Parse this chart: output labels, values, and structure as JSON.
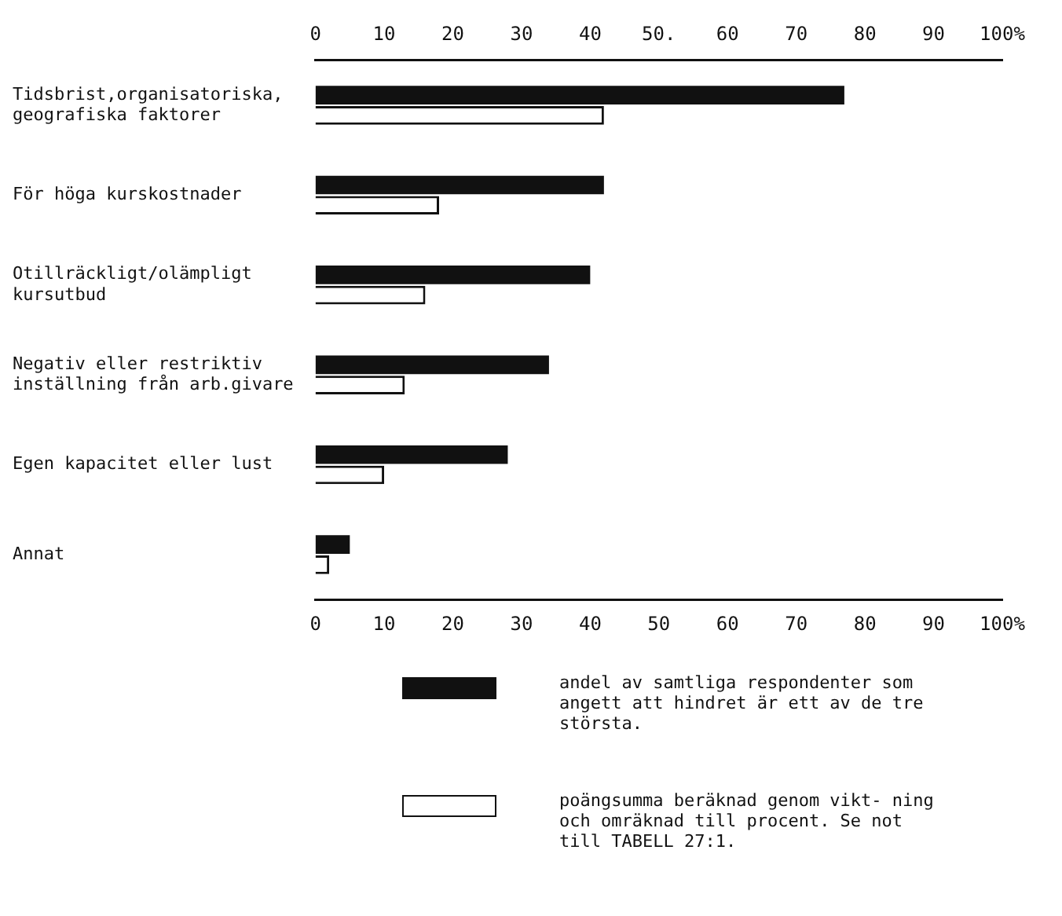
{
  "chart_data": {
    "type": "bar",
    "orientation": "horizontal",
    "categories": [
      "Tidsbrist,organisatoriska, geografiska faktorer",
      "För höga kurskostnader",
      "Otillräckligt/olämpligt kursutbud",
      "Negativ eller restriktiv inställning från arb.givare",
      "Egen kapacitet eller lust",
      "Annat"
    ],
    "series": [
      {
        "name": "andel av samtliga respondenter som angett att hindret är ett av de tre största.",
        "color": "#111111",
        "values": [
          77,
          42,
          40,
          34,
          28,
          5
        ]
      },
      {
        "name": "poängsumma beräknad genom vikt- ning och omräknad till procent. Se not till TABELL 27:1.",
        "color": "#ffffff",
        "values": [
          42,
          18,
          16,
          13,
          10,
          2
        ]
      }
    ],
    "xlim": [
      0,
      100
    ],
    "xticks": [
      0,
      10,
      20,
      30,
      40,
      50,
      60,
      70,
      80,
      90,
      {
        "value": 100,
        "label": "100%"
      }
    ],
    "x2lim": [
      0,
      100
    ],
    "x2ticks": [
      0,
      10,
      20,
      30,
      40,
      {
        "value": 50,
        "label": "50."
      },
      60,
      70,
      80,
      90,
      {
        "value": 100,
        "label": "100%"
      }
    ],
    "grid": false,
    "legend": "bottom"
  }
}
